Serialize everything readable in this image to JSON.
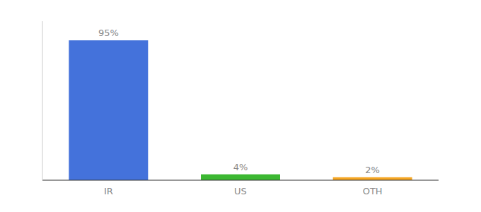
{
  "chart_data": {
    "type": "bar",
    "categories": [
      "IR",
      "US",
      "OTH"
    ],
    "values": [
      95,
      4,
      2
    ],
    "colors": [
      "#4472db",
      "#3cb832",
      "#f5a623"
    ],
    "value_labels": [
      "95%",
      "4%",
      "2%"
    ],
    "data_labels": true,
    "ylim": [
      0,
      108
    ],
    "tick_labels": "x"
  }
}
